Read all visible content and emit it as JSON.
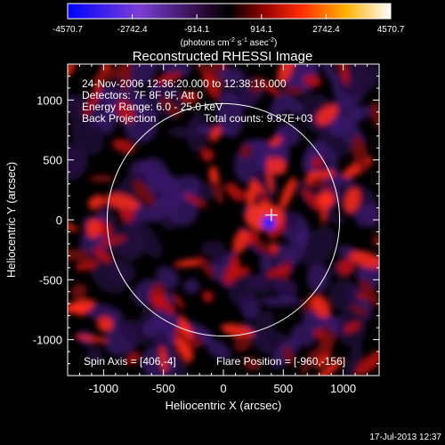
{
  "chart_data": {
    "type": "heatmap",
    "title": "Reconstructed RHESSI Image",
    "xlabel": "Heliocentric X (arcsec)",
    "ylabel": "Heliocentric Y (arcsec)",
    "xlim": [
      -1300,
      1300
    ],
    "ylim": [
      -1300,
      1300
    ],
    "x_ticks": [
      -1000,
      -500,
      0,
      500,
      1000
    ],
    "y_ticks": [
      -1000,
      -500,
      0,
      500,
      1000
    ],
    "colorbar": {
      "ticks": [
        "-4570.7",
        "-2742.4",
        "-914.1",
        "914.1",
        "2742.4",
        "4570.7"
      ],
      "range": [
        -4570.7,
        4570.7
      ],
      "unit_prefix": "(photons cm",
      "unit_sup1": "-2",
      "unit_mid": " s",
      "unit_sup2": "-1",
      "unit_mid2": " asec",
      "unit_sup3": "-2",
      "unit_suffix": ")"
    },
    "info_lines": [
      "24-Nov-2006 12:36:20.000 to 12:38:16.000",
      "Detectors: 7F 8F 9F, Att 0",
      "Energy Range: 6.0 - 25.0 keV",
      "Back Projection"
    ],
    "total_counts": "Total counts: 9.87E+03",
    "spin_axis": "Spin Axis = [406,-4]",
    "flare_position": "Flare Position = [-960,-156]",
    "solar_limb": {
      "center": [
        0,
        0
      ],
      "radius_arcsec": 970
    },
    "marker": {
      "x": 400,
      "y": 40
    },
    "date_stamp": "17-Jul-2013 12:37"
  },
  "colors": {
    "background": "#000000",
    "negative": "#3a1a7a",
    "positive": "#ff2020",
    "limb": "#ffffff"
  }
}
